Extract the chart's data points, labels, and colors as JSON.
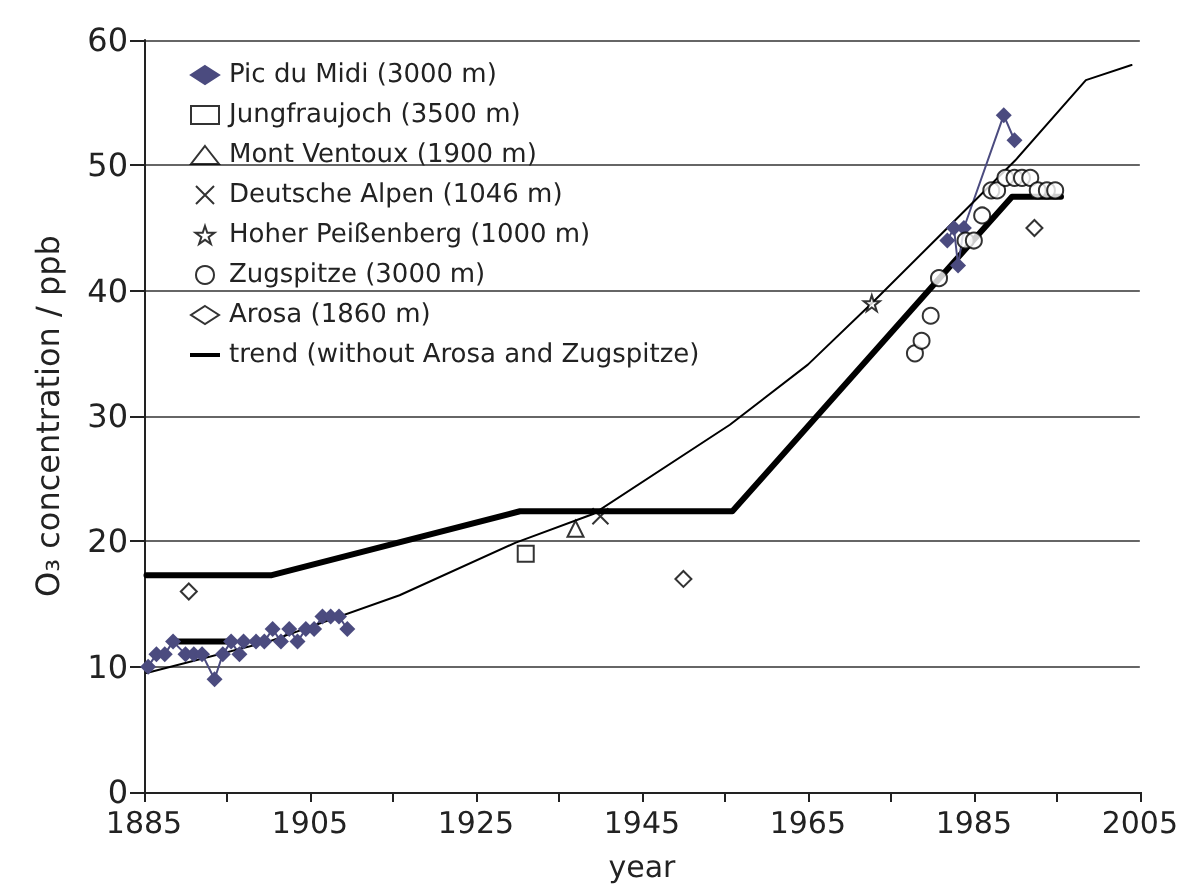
{
  "chart_data": {
    "type": "scatter",
    "xlabel": "year",
    "ylabel": "O₃ concentration / ppb",
    "xlim": [
      1885,
      2005
    ],
    "ylim": [
      0,
      60
    ],
    "xticks": [
      1885,
      {
        "value": 1895,
        "label": null
      },
      1905,
      {
        "value": 1915,
        "label": null
      },
      1925,
      {
        "value": 1935,
        "label": null
      },
      1945,
      {
        "value": 1955,
        "label": null
      },
      1965,
      {
        "value": 1975,
        "label": null
      },
      1985,
      {
        "value": 1995,
        "label": null
      },
      2005
    ],
    "yticks": [
      0,
      10,
      20,
      30,
      40,
      50,
      60
    ],
    "grid": "y",
    "legend": "top left",
    "series": [
      {
        "name": "Pic du Midi (3000 m)",
        "type": "line",
        "marker": "diamond",
        "line_style": "solid",
        "color": "#4b4b7f",
        "x": [
          1885.5,
          1886.5,
          1887.5,
          1888.5,
          1890,
          1891,
          1892,
          1893.5,
          1894.5,
          1895.5,
          1896.5,
          1897,
          1898.5,
          1899.5,
          1900.5,
          1901.5,
          1902.5,
          1903.5,
          1904.5,
          1905.5,
          1906.5,
          1907.5,
          1908.5,
          1909.5,
          1945,
          1981.8,
          1982.6,
          1983.1,
          1983.8,
          1988.6,
          1989.9
        ],
        "values": [
          10,
          11,
          11,
          12,
          11,
          11,
          11,
          9,
          11,
          12,
          11,
          12,
          12,
          12,
          13,
          12,
          13,
          12,
          13,
          13,
          14,
          14,
          14,
          13,
          null,
          44,
          45,
          42,
          45,
          54,
          52
        ]
      },
      {
        "name": "Jungfraujoch (3500 m)",
        "marker": "square",
        "color": "#000000",
        "x": [
          1931
        ],
        "values": [
          19
        ]
      },
      {
        "name": "Mont Ventoux (1900 m)",
        "marker": "triangle",
        "color": "#000000",
        "x": [
          1937
        ],
        "values": [
          21
        ]
      },
      {
        "name": "Deutsche Alpen (1046 m)",
        "marker": "cross",
        "color": "#000000",
        "x": [
          1940
        ],
        "values": [
          22
        ]
      },
      {
        "name": "Hoher Peißenberg (1000 m)",
        "marker": "star",
        "color": "#000000",
        "x": [
          1972.7
        ],
        "values": [
          39
        ]
      },
      {
        "name": "Zugspitze (3000 m)",
        "marker": "circle",
        "color": "#000000",
        "x": [
          1977.9,
          1978.7,
          1979.8,
          1980.8,
          1984,
          1985,
          1986,
          1987.1,
          1987.8,
          1988.8,
          1989.9,
          1990.8,
          1991.8,
          1992.7,
          1993.8,
          1994.8
        ],
        "values": [
          35,
          36,
          38,
          41,
          44,
          44,
          46,
          48,
          48,
          49,
          49,
          49,
          49,
          48,
          48,
          48
        ]
      },
      {
        "name": "Arosa (1860 m)",
        "marker": "diamond",
        "color": "#000000",
        "x": [
          1890.4,
          1950,
          1992.3
        ],
        "values": [
          16,
          17,
          45
        ]
      },
      {
        "name": "trend (without Arosa and Zugspitze)",
        "type": "line",
        "marker": "none",
        "line_style": "solid",
        "color": "#000000",
        "x": [
          1885.3,
          1900,
          1915.8,
          1929.8,
          1939.2,
          1955.6,
          1965,
          1972.7,
          1980.6,
          1990,
          1998.5,
          2004
        ],
        "values": [
          9.5,
          12,
          15.7,
          19.9,
          22.2,
          29.3,
          34.1,
          39,
          44.2,
          50.4,
          56.8,
          58
        ]
      },
      {
        "type": "line",
        "marker": "none",
        "line_style": "solid",
        "color": "#000000",
        "x": [
          1885.3,
          1900.4,
          1930.3,
          1955.9,
          1989.6,
          1995.5
        ],
        "values": [
          17.3,
          17.3,
          22.4,
          22.4,
          47.5,
          47.5
        ]
      },
      {
        "type": "line",
        "marker": "none",
        "line_style": "solid",
        "color": "#000000",
        "x": [
          1888.4,
          1895.4
        ],
        "values": [
          12,
          12
        ]
      }
    ]
  }
}
